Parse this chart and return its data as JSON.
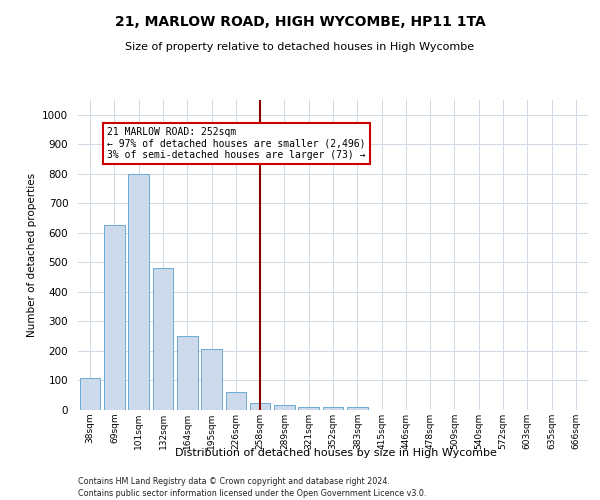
{
  "title1": "21, MARLOW ROAD, HIGH WYCOMBE, HP11 1TA",
  "title2": "Size of property relative to detached houses in High Wycombe",
  "xlabel": "Distribution of detached houses by size in High Wycombe",
  "ylabel": "Number of detached properties",
  "footer1": "Contains HM Land Registry data © Crown copyright and database right 2024.",
  "footer2": "Contains public sector information licensed under the Open Government Licence v3.0.",
  "categories": [
    "38sqm",
    "69sqm",
    "101sqm",
    "132sqm",
    "164sqm",
    "195sqm",
    "226sqm",
    "258sqm",
    "289sqm",
    "321sqm",
    "352sqm",
    "383sqm",
    "415sqm",
    "446sqm",
    "478sqm",
    "509sqm",
    "540sqm",
    "572sqm",
    "603sqm",
    "635sqm",
    "666sqm"
  ],
  "values": [
    110,
    625,
    800,
    480,
    250,
    205,
    60,
    25,
    17,
    10,
    10,
    10,
    0,
    0,
    0,
    0,
    0,
    0,
    0,
    0,
    0
  ],
  "bar_color": "#cddaeb",
  "bar_edge_color": "#6aaad4",
  "highlight_index": 7,
  "highlight_line_color": "#8b0000",
  "annotation_text1": "21 MARLOW ROAD: 252sqm",
  "annotation_text2": "← 97% of detached houses are smaller (2,496)",
  "annotation_text3": "3% of semi-detached houses are larger (73) →",
  "annotation_box_color": "#cc0000",
  "ylim": [
    0,
    1050
  ],
  "yticks": [
    0,
    100,
    200,
    300,
    400,
    500,
    600,
    700,
    800,
    900,
    1000
  ],
  "grid_color": "#d0d8e4",
  "background_color": "#ffffff"
}
